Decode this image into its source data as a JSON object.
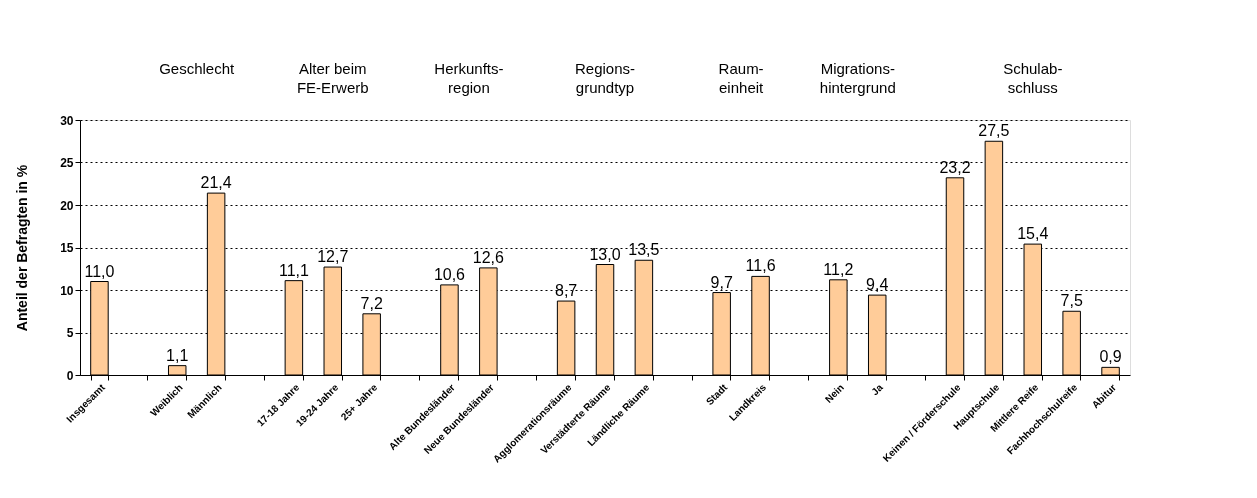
{
  "chart_data": {
    "type": "bar",
    "categories": [
      "Insgesamt",
      null,
      "Weiblich",
      "Männlich",
      null,
      "17-18 Jahre",
      "19-24 Jahre",
      "25+ Jahre",
      null,
      "Alte Bundesländer",
      "Neue Bundesländer",
      null,
      "Agglomerationsräume",
      "Verstädterte Räume",
      "Ländliche Räume",
      null,
      "Stadt",
      "Landkreis",
      null,
      "Nein",
      "Ja",
      null,
      "Keinen / Förderschule",
      "Hauptschule",
      "Mittlere Reife",
      "Fachhochschulreife",
      "Abitur"
    ],
    "values": [
      11.0,
      null,
      1.1,
      21.4,
      null,
      11.1,
      12.7,
      7.2,
      null,
      10.6,
      12.6,
      null,
      8.7,
      13.0,
      13.5,
      null,
      9.7,
      11.6,
      null,
      11.2,
      9.4,
      null,
      23.2,
      27.5,
      15.4,
      7.5,
      0.9
    ],
    "value_labels": [
      "11,0",
      null,
      "1,1",
      "21,4",
      null,
      "11,1",
      "12,7",
      "7,2",
      null,
      "10,6",
      "12,6",
      null,
      "8,7",
      "13,0",
      "13,5",
      null,
      "9,7",
      "11,6",
      null,
      "11,2",
      "9,4",
      null,
      "23,2",
      "27,5",
      "15,4",
      "7,5",
      "0,9"
    ],
    "color": "#ffcc99",
    "ylabel": "Anteil der Befragten in %",
    "ylim": [
      0,
      30
    ],
    "yticks": [
      0,
      5,
      10,
      15,
      20,
      25,
      30
    ],
    "grid": "y",
    "annotations": [
      "Geschlecht",
      "Alter beim\nFE-Erwerb",
      "Herkunfts-\nregion",
      "Regions-\ngrundtyp",
      "Raum-\neinheit",
      "Migrations-\nhintergrund",
      "Schulab-\nschluss"
    ]
  }
}
